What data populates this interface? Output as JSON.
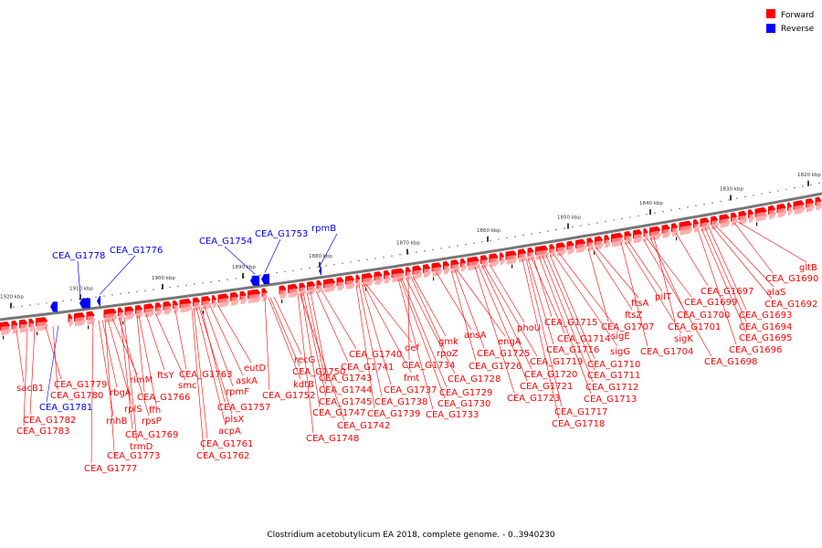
{
  "colors": {
    "forward": "#ff0000",
    "reverse": "#0000ff",
    "backbone": "#777777"
  },
  "legend": [
    {
      "label": "Forward",
      "color": "#ff0000"
    },
    {
      "label": "Reverse",
      "color": "#0000ff"
    }
  ],
  "caption": "Clostridium acetobutylicum EA 2018, complete genome. - 0..3940230",
  "ticks": [
    "1920 kbp",
    "1910 kbp",
    "1900 kbp",
    "1890 kbp",
    "1880 kbp",
    "1870 kbp",
    "1860 kbp",
    "1850 kbp",
    "1840 kbp",
    "1830 kbp",
    "1820 kbp"
  ],
  "top_labels": [
    {
      "text": "CEA_G1778",
      "strand": "reverse"
    },
    {
      "text": "CEA_G1776",
      "strand": "reverse"
    },
    {
      "text": "CEA_G1754",
      "strand": "reverse"
    },
    {
      "text": "CEA_G1753",
      "strand": "reverse"
    },
    {
      "text": "rpmB",
      "strand": "reverse"
    }
  ],
  "bottom_labels": [
    {
      "text": "sacB1",
      "strand": "forward"
    },
    {
      "text": "CEA_G1779",
      "strand": "forward"
    },
    {
      "text": "CEA_G1780",
      "strand": "forward"
    },
    {
      "text": "CEA_G1781",
      "strand": "reverse"
    },
    {
      "text": "CEA_G1782",
      "strand": "forward"
    },
    {
      "text": "CEA_G1783",
      "strand": "forward"
    },
    {
      "text": "rimM",
      "strand": "forward"
    },
    {
      "text": "rbgA",
      "strand": "forward"
    },
    {
      "text": "rplS",
      "strand": "forward"
    },
    {
      "text": "rnhB",
      "strand": "forward"
    },
    {
      "text": "rpsP",
      "strand": "forward"
    },
    {
      "text": "CEA_G1769",
      "strand": "forward"
    },
    {
      "text": "trmD",
      "strand": "forward"
    },
    {
      "text": "CEA_G1773",
      "strand": "forward"
    },
    {
      "text": "CEA_G1777",
      "strand": "forward"
    },
    {
      "text": "ftsY",
      "strand": "forward"
    },
    {
      "text": "smc",
      "strand": "forward"
    },
    {
      "text": "CEA_G1766",
      "strand": "forward"
    },
    {
      "text": "ffh",
      "strand": "forward"
    },
    {
      "text": "CEA_G1763",
      "strand": "forward"
    },
    {
      "text": "eutD",
      "strand": "forward"
    },
    {
      "text": "askA",
      "strand": "forward"
    },
    {
      "text": "rpmF",
      "strand": "forward"
    },
    {
      "text": "CEA_G1757",
      "strand": "forward"
    },
    {
      "text": "plsX",
      "strand": "forward"
    },
    {
      "text": "acpA",
      "strand": "forward"
    },
    {
      "text": "CEA_G1761",
      "strand": "forward"
    },
    {
      "text": "CEA_G1762",
      "strand": "forward"
    },
    {
      "text": "recG",
      "strand": "forward"
    },
    {
      "text": "CEA_G1750",
      "strand": "forward"
    },
    {
      "text": "kdtB",
      "strand": "forward"
    },
    {
      "text": "CEA_G1752",
      "strand": "forward"
    },
    {
      "text": "CEA_G1740",
      "strand": "forward"
    },
    {
      "text": "CEA_G1741",
      "strand": "forward"
    },
    {
      "text": "CEA_G1743",
      "strand": "forward"
    },
    {
      "text": "CEA_G1744",
      "strand": "forward"
    },
    {
      "text": "CEA_G1745",
      "strand": "forward"
    },
    {
      "text": "CEA_G1747",
      "strand": "forward"
    },
    {
      "text": "CEA_G1742",
      "strand": "forward"
    },
    {
      "text": "CEA_G1748",
      "strand": "forward"
    },
    {
      "text": "def",
      "strand": "forward"
    },
    {
      "text": "fmt",
      "strand": "forward"
    },
    {
      "text": "CEA_G1737",
      "strand": "forward"
    },
    {
      "text": "CEA_G1738",
      "strand": "forward"
    },
    {
      "text": "CEA_G1739",
      "strand": "forward"
    },
    {
      "text": "gmk",
      "strand": "forward"
    },
    {
      "text": "rpoZ",
      "strand": "forward"
    },
    {
      "text": "CEA_G1734",
      "strand": "forward"
    },
    {
      "text": "CEA_G1728",
      "strand": "forward"
    },
    {
      "text": "CEA_G1729",
      "strand": "forward"
    },
    {
      "text": "CEA_G1730",
      "strand": "forward"
    },
    {
      "text": "CEA_G1733",
      "strand": "forward"
    },
    {
      "text": "ansA",
      "strand": "forward"
    },
    {
      "text": "engA",
      "strand": "forward"
    },
    {
      "text": "CEA_G1725",
      "strand": "forward"
    },
    {
      "text": "CEA_G1726",
      "strand": "forward"
    },
    {
      "text": "phoU",
      "strand": "forward"
    },
    {
      "text": "CEA_G1719",
      "strand": "forward"
    },
    {
      "text": "CEA_G1720",
      "strand": "forward"
    },
    {
      "text": "CEA_G1721",
      "strand": "forward"
    },
    {
      "text": "CEA_G1723",
      "strand": "forward"
    },
    {
      "text": "CEA_G1715",
      "strand": "forward"
    },
    {
      "text": "CEA_G1714",
      "strand": "forward"
    },
    {
      "text": "CEA_G1716",
      "strand": "forward"
    },
    {
      "text": "CEA_G1717",
      "strand": "forward"
    },
    {
      "text": "CEA_G1718",
      "strand": "forward"
    },
    {
      "text": "sigE",
      "strand": "forward"
    },
    {
      "text": "sigG",
      "strand": "forward"
    },
    {
      "text": "CEA_G1710",
      "strand": "forward"
    },
    {
      "text": "CEA_G1711",
      "strand": "forward"
    },
    {
      "text": "CEA_G1712",
      "strand": "forward"
    },
    {
      "text": "CEA_G1713",
      "strand": "forward"
    },
    {
      "text": "ftsA",
      "strand": "forward"
    },
    {
      "text": "ftsZ",
      "strand": "forward"
    },
    {
      "text": "CEA_G1707",
      "strand": "forward"
    },
    {
      "text": "pilT",
      "strand": "forward"
    },
    {
      "text": "sigK",
      "strand": "forward"
    },
    {
      "text": "CEA_G1704",
      "strand": "forward"
    },
    {
      "text": "CEA_G1701",
      "strand": "forward"
    },
    {
      "text": "CEA_G1700",
      "strand": "forward"
    },
    {
      "text": "CEA_G1699",
      "strand": "forward"
    },
    {
      "text": "CEA_G1698",
      "strand": "forward"
    },
    {
      "text": "CEA_G1697",
      "strand": "forward"
    },
    {
      "text": "alaS",
      "strand": "forward"
    },
    {
      "text": "CEA_G1692",
      "strand": "forward"
    },
    {
      "text": "CEA_G1693",
      "strand": "forward"
    },
    {
      "text": "CEA_G1694",
      "strand": "forward"
    },
    {
      "text": "CEA_G1695",
      "strand": "forward"
    },
    {
      "text": "CEA_G1696",
      "strand": "forward"
    },
    {
      "text": "gltB",
      "strand": "forward"
    },
    {
      "text": "CEA_G1690",
      "strand": "forward"
    }
  ]
}
